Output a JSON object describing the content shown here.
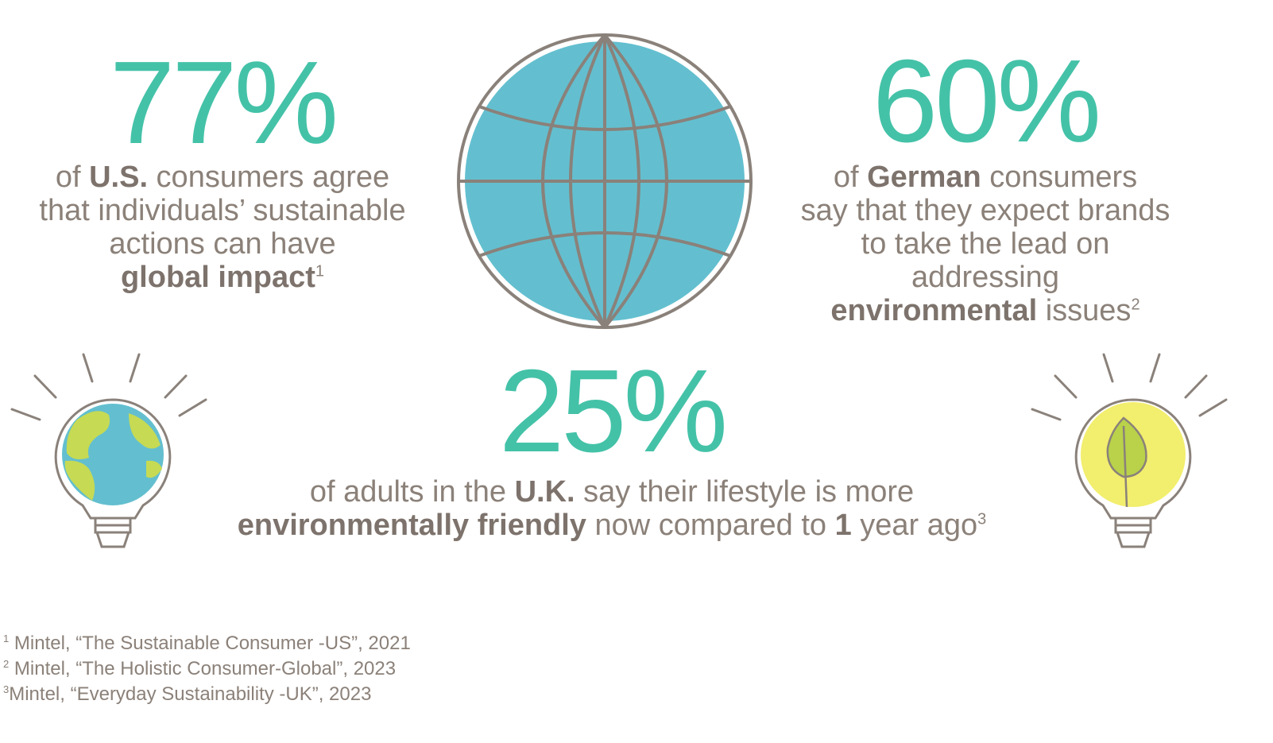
{
  "colors": {
    "accent": "#44c2a8",
    "text": "#8b8179",
    "globe_ocean": "#63bfcf",
    "globe_land": "#c6da54",
    "outline": "#8a817a",
    "bulb_glow": "#f2ee6e",
    "leaf": "#b9d24a"
  },
  "stats": {
    "us": {
      "value": "77%",
      "line1_a": "of ",
      "line1_b": "U.S.",
      "line1_c": " consumers agree",
      "line2": "that individuals’ sustainable",
      "line3": "actions can have",
      "line4": "global impact",
      "ref": "1"
    },
    "de": {
      "value": "60%",
      "line1_a": "of ",
      "line1_b": "German",
      "line1_c": " consumers",
      "line2": "say that they expect brands",
      "line3": "to take the lead on",
      "line4": "addressing",
      "line5_a": "environmental",
      "line5_b": " issues",
      "ref": "2"
    },
    "uk": {
      "value": "25%",
      "line1_a": "of adults in the ",
      "line1_b": "U.K.",
      "line1_c": " say their lifestyle is more",
      "line2_a": "environmentally friendly",
      "line2_b": " now compared to ",
      "line2_c": "1",
      "line2_d": " year ago",
      "ref": "3"
    }
  },
  "icons": {
    "center": "globe-icon",
    "left": "lightbulb-earth-icon",
    "right": "lightbulb-leaf-icon"
  },
  "footnotes": [
    {
      "ref": "1",
      "text": "Mintel, “The Sustainable Consumer -US”, 2021"
    },
    {
      "ref": "2",
      "text": "Mintel, “The Holistic Consumer-Global”, 2023"
    },
    {
      "ref": "3",
      "text": "Mintel,  “Everyday Sustainability -UK”, 2023"
    }
  ]
}
